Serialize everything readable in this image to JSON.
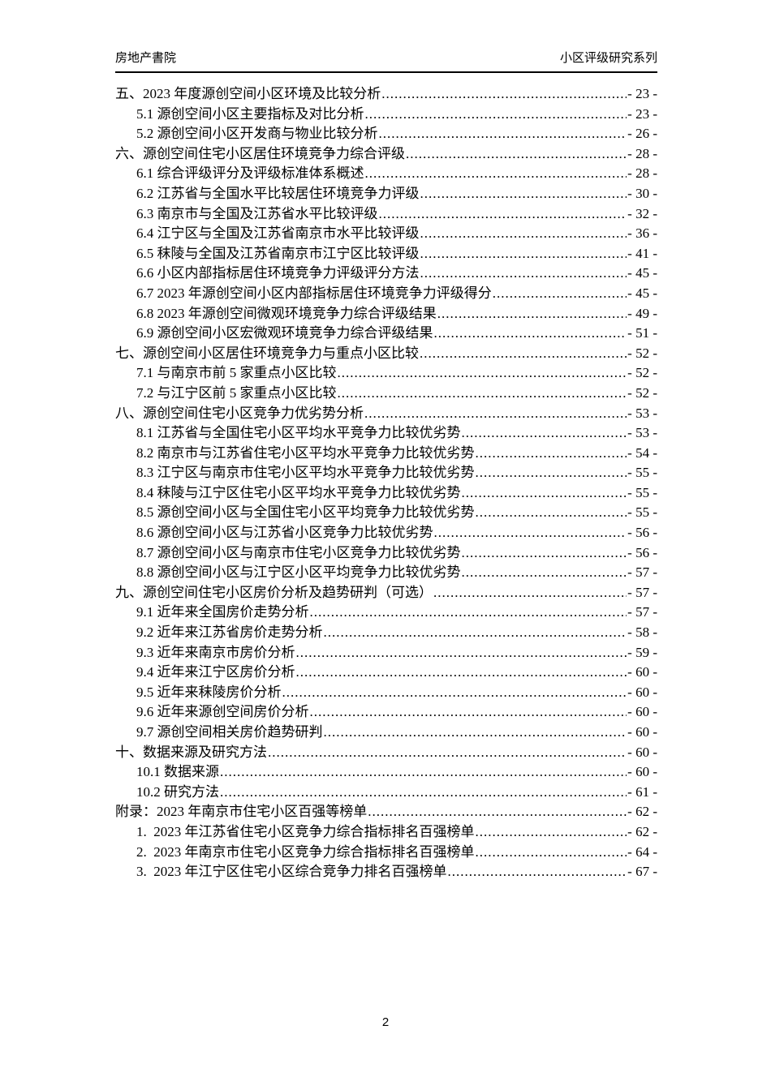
{
  "header": {
    "left": "房地产書院",
    "right": "小区评级研究系列"
  },
  "toc": {
    "entries": [
      {
        "level": 0,
        "label": "五、2023 年度源创空间小区环境及比较分析",
        "page": "- 23 -"
      },
      {
        "level": 1,
        "label": "5.1 源创空间小区主要指标及对比分析",
        "page": "- 23 -"
      },
      {
        "level": 1,
        "label": "5.2 源创空间小区开发商与物业比较分析",
        "page": "- 26 -"
      },
      {
        "level": 0,
        "label": "六、源创空间住宅小区居住环境竞争力综合评级",
        "page": "- 28 -"
      },
      {
        "level": 1,
        "label": "6.1 综合评级评分及评级标准体系概述",
        "page": "- 28 -"
      },
      {
        "level": 1,
        "label": "6.2 江苏省与全国水平比较居住环境竞争力评级",
        "page": "- 30 -"
      },
      {
        "level": 1,
        "label": "6.3 南京市与全国及江苏省水平比较评级",
        "page": "- 32 -"
      },
      {
        "level": 1,
        "label": "6.4 江宁区与全国及江苏省南京市水平比较评级",
        "page": "- 36 -"
      },
      {
        "level": 1,
        "label": "6.5 秣陵与全国及江苏省南京市江宁区比较评级",
        "page": "- 41 -"
      },
      {
        "level": 1,
        "label": "6.6 小区内部指标居住环境竞争力评级评分方法",
        "page": "- 45 -"
      },
      {
        "level": 1,
        "label": "6.7 2023 年源创空间小区内部指标居住环境竞争力评级得分",
        "page": "- 45 -"
      },
      {
        "level": 1,
        "label": "6.8 2023 年源创空间微观环境竞争力综合评级结果",
        "page": "- 49 -"
      },
      {
        "level": 1,
        "label": "6.9 源创空间小区宏微观环境竞争力综合评级结果",
        "page": "- 51 -"
      },
      {
        "level": 0,
        "label": "七、源创空间小区居住环境竞争力与重点小区比较",
        "page": "- 52 -"
      },
      {
        "level": 1,
        "label": "7.1 与南京市前 5 家重点小区比较",
        "page": "- 52 -"
      },
      {
        "level": 1,
        "label": "7.2 与江宁区前 5 家重点小区比较",
        "page": "- 52 -"
      },
      {
        "level": 0,
        "label": "八、源创空间住宅小区竞争力优劣势分析",
        "page": "- 53 -"
      },
      {
        "level": 1,
        "label": "8.1 江苏省与全国住宅小区平均水平竞争力比较优劣势",
        "page": "- 53 -"
      },
      {
        "level": 1,
        "label": "8.2 南京市与江苏省住宅小区平均水平竞争力比较优劣势",
        "page": "- 54 -"
      },
      {
        "level": 1,
        "label": "8.3 江宁区与南京市住宅小区平均水平竞争力比较优劣势",
        "page": "- 55 -"
      },
      {
        "level": 1,
        "label": "8.4 秣陵与江宁区住宅小区平均水平竞争力比较优劣势",
        "page": "- 55 -"
      },
      {
        "level": 1,
        "label": "8.5 源创空间小区与全国住宅小区平均竞争力比较优劣势",
        "page": "- 55 -"
      },
      {
        "level": 1,
        "label": "8.6 源创空间小区与江苏省小区竞争力比较优劣势",
        "page": "- 56 -"
      },
      {
        "level": 1,
        "label": "8.7 源创空间小区与南京市住宅小区竞争力比较优劣势",
        "page": "- 56 -"
      },
      {
        "level": 1,
        "label": "8.8 源创空间小区与江宁区小区平均竞争力比较优劣势",
        "page": "- 57 -"
      },
      {
        "level": 0,
        "label": "九、源创空间住宅小区房价分析及趋势研判（可选）",
        "page": "- 57 -"
      },
      {
        "level": 1,
        "label": "9.1 近年来全国房价走势分析",
        "page": "- 57 -"
      },
      {
        "level": 1,
        "label": "9.2 近年来江苏省房价走势分析",
        "page": "- 58 -"
      },
      {
        "level": 1,
        "label": "9.3 近年来南京市房价分析",
        "page": "- 59 -"
      },
      {
        "level": 1,
        "label": "9.4 近年来江宁区房价分析",
        "page": "- 60 -"
      },
      {
        "level": 1,
        "label": "9.5 近年来秣陵房价分析",
        "page": "- 60 -"
      },
      {
        "level": 1,
        "label": "9.6 近年来源创空间房价分析",
        "page": "- 60 -"
      },
      {
        "level": 1,
        "label": "9.7 源创空间相关房价趋势研判",
        "page": "- 60 -"
      },
      {
        "level": 0,
        "label": "十、数据来源及研究方法",
        "page": "- 60 -"
      },
      {
        "level": 1,
        "label": "10.1 数据来源",
        "page": "- 60 -"
      },
      {
        "level": 1,
        "label": "10.2 研究方法",
        "page": "- 61 -"
      },
      {
        "level": 0,
        "label": "附录：2023 年南京市住宅小区百强等榜单",
        "page": "- 62 -"
      },
      {
        "level": 1,
        "label": "1. 2023 年江苏省住宅小区竞争力综合指标排名百强榜单",
        "page": "- 62 -"
      },
      {
        "level": 1,
        "label": "2. 2023 年南京市住宅小区竞争力综合指标排名百强榜单",
        "page": "- 64 -"
      },
      {
        "level": 1,
        "label": "3. 2023 年江宁区住宅小区综合竞争力排名百强榜单",
        "page": "- 67 -"
      }
    ]
  },
  "footer": {
    "page_number": "2"
  }
}
